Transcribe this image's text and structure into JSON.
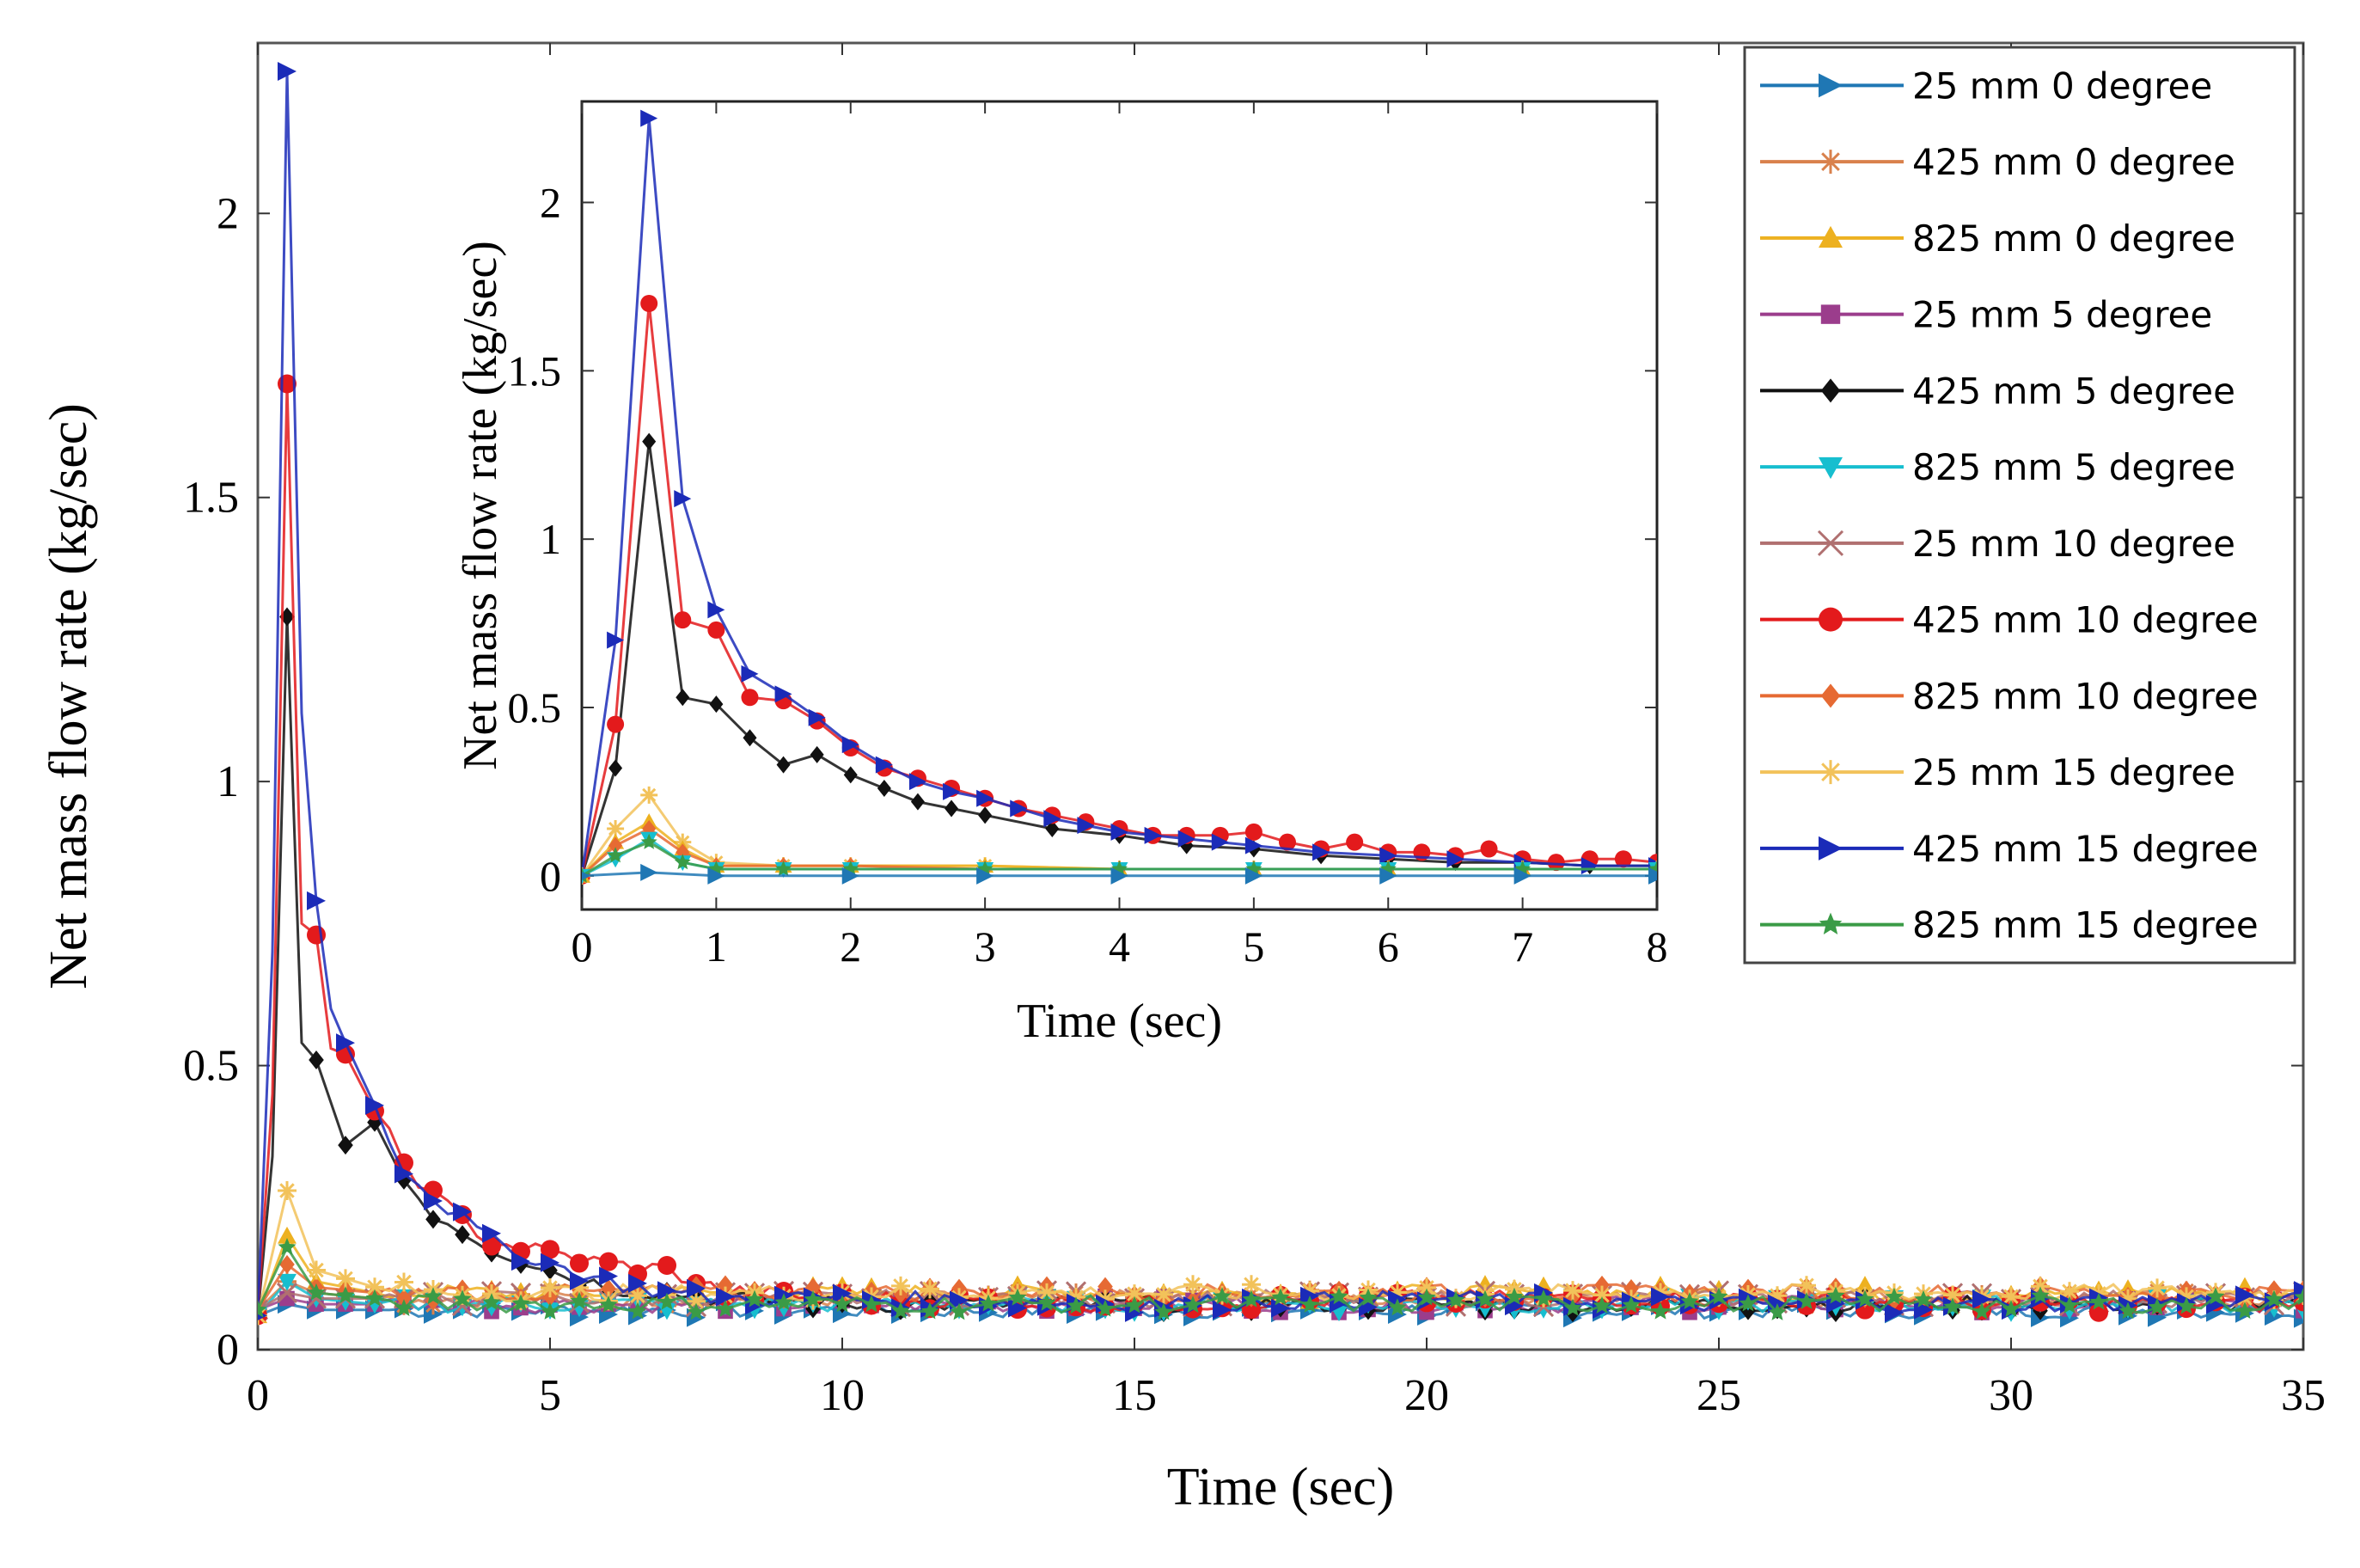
{
  "chart_data": [
    {
      "type": "line",
      "role": "main",
      "title": "",
      "xlabel": "Time (sec)",
      "ylabel": "Net mass flow rate (kg/sec)",
      "xlim": [
        0,
        35
      ],
      "ylim": [
        0,
        2.3
      ],
      "xticks": [
        "0",
        "5",
        "10",
        "15",
        "20",
        "25",
        "30",
        "35"
      ],
      "yticks": [
        "0",
        "0.5",
        "1",
        "1.5",
        "2"
      ],
      "legend_position": "top-right",
      "series": [
        {
          "name": "25 mm 0 degree",
          "color": "#1f77b4",
          "marker": "triangle-right",
          "x": [
            0,
            0.5,
            1,
            2,
            3,
            5,
            10,
            15,
            20,
            25,
            30,
            35
          ],
          "y": [
            0.06,
            0.08,
            0.07,
            0.07,
            0.07,
            0.07,
            0.07,
            0.07,
            0.07,
            0.07,
            0.07,
            0.07
          ]
        },
        {
          "name": "425 mm 0 degree",
          "color": "#d9814c",
          "marker": "asterisk",
          "x": [
            0,
            0.5,
            1,
            2,
            3,
            5,
            10,
            15,
            20,
            25,
            30,
            35
          ],
          "y": [
            0.07,
            0.12,
            0.1,
            0.09,
            0.09,
            0.09,
            0.09,
            0.09,
            0.09,
            0.09,
            0.09,
            0.09
          ]
        },
        {
          "name": "825 mm 0 degree",
          "color": "#edb120",
          "marker": "triangle-up",
          "x": [
            0,
            0.5,
            1,
            2,
            3,
            5,
            10,
            15,
            20,
            25,
            30,
            35
          ],
          "y": [
            0.06,
            0.2,
            0.12,
            0.1,
            0.1,
            0.1,
            0.1,
            0.1,
            0.1,
            0.1,
            0.1,
            0.1
          ]
        },
        {
          "name": "25 mm 5 degree",
          "color": "#9b3d8c",
          "marker": "square",
          "x": [
            0,
            0.5,
            1,
            2,
            3,
            5,
            10,
            15,
            20,
            25,
            30,
            35
          ],
          "y": [
            0.07,
            0.09,
            0.08,
            0.08,
            0.08,
            0.08,
            0.08,
            0.08,
            0.08,
            0.08,
            0.08,
            0.08
          ]
        },
        {
          "name": "425 mm 5 degree",
          "color": "#111111",
          "marker": "diamond",
          "x": [
            0,
            0.25,
            0.5,
            0.75,
            1,
            1.5,
            2,
            2.5,
            3,
            4,
            5,
            6,
            8,
            10,
            15,
            20,
            25,
            30,
            35
          ],
          "y": [
            0.06,
            0.34,
            1.29,
            0.54,
            0.51,
            0.36,
            0.4,
            0.3,
            0.24,
            0.18,
            0.14,
            0.11,
            0.09,
            0.08,
            0.08,
            0.08,
            0.08,
            0.08,
            0.08
          ]
        },
        {
          "name": "825 mm 5 degree",
          "color": "#17becf",
          "marker": "triangle-down",
          "x": [
            0,
            0.5,
            1,
            2,
            3,
            5,
            10,
            15,
            20,
            25,
            30,
            35
          ],
          "y": [
            0.06,
            0.12,
            0.09,
            0.08,
            0.08,
            0.08,
            0.08,
            0.08,
            0.08,
            0.08,
            0.08,
            0.08
          ]
        },
        {
          "name": "25 mm 10 degree",
          "color": "#b07070",
          "marker": "x",
          "x": [
            0,
            0.5,
            1,
            2,
            3,
            5,
            10,
            15,
            20,
            25,
            30,
            35
          ],
          "y": [
            0.07,
            0.1,
            0.09,
            0.09,
            0.09,
            0.09,
            0.09,
            0.09,
            0.09,
            0.09,
            0.09,
            0.09
          ]
        },
        {
          "name": "425 mm 10 degree",
          "color": "#e31a1c",
          "marker": "circle",
          "x": [
            0,
            0.25,
            0.5,
            0.75,
            1,
            1.25,
            1.5,
            2,
            2.5,
            3,
            4,
            5,
            6,
            7,
            8,
            10,
            15,
            20,
            25,
            30,
            35
          ],
          "y": [
            0.06,
            0.45,
            1.7,
            0.75,
            0.73,
            0.53,
            0.52,
            0.42,
            0.33,
            0.27,
            0.19,
            0.17,
            0.15,
            0.14,
            0.1,
            0.09,
            0.08,
            0.09,
            0.09,
            0.08,
            0.08
          ]
        },
        {
          "name": "825 mm 10 degree",
          "color": "#e66a33",
          "marker": "diamond",
          "x": [
            0,
            0.5,
            1,
            2,
            3,
            5,
            10,
            15,
            20,
            25,
            30,
            35
          ],
          "y": [
            0.07,
            0.15,
            0.11,
            0.1,
            0.1,
            0.1,
            0.1,
            0.1,
            0.1,
            0.1,
            0.1,
            0.1
          ]
        },
        {
          "name": "25 mm 15 degree",
          "color": "#f2c25a",
          "marker": "asterisk",
          "x": [
            0,
            0.5,
            1,
            2,
            3,
            5,
            10,
            15,
            20,
            25,
            30,
            35
          ],
          "y": [
            0.06,
            0.28,
            0.14,
            0.11,
            0.1,
            0.1,
            0.1,
            0.1,
            0.1,
            0.1,
            0.1,
            0.1
          ]
        },
        {
          "name": "425 mm 15 degree",
          "color": "#1b2bb8",
          "marker": "triangle-right",
          "x": [
            0,
            0.25,
            0.5,
            0.75,
            1,
            1.25,
            1.5,
            2,
            2.5,
            3,
            4,
            5,
            6,
            7,
            8,
            10,
            15,
            20,
            25,
            30,
            35
          ],
          "y": [
            0.06,
            0.7,
            2.25,
            1.12,
            0.79,
            0.6,
            0.54,
            0.43,
            0.32,
            0.27,
            0.19,
            0.15,
            0.12,
            0.1,
            0.09,
            0.09,
            0.08,
            0.09,
            0.08,
            0.08,
            0.09
          ]
        },
        {
          "name": "825 mm 15 degree",
          "color": "#3a9b46",
          "marker": "star",
          "x": [
            0,
            0.5,
            1,
            2,
            3,
            5,
            10,
            15,
            20,
            25,
            30,
            35
          ],
          "y": [
            0.07,
            0.18,
            0.1,
            0.09,
            0.08,
            0.08,
            0.08,
            0.08,
            0.08,
            0.08,
            0.08,
            0.08
          ]
        }
      ]
    },
    {
      "type": "line",
      "role": "inset",
      "title": "",
      "xlabel": "Time (sec)",
      "ylabel": "Net mass flow rate (kg/sec)",
      "xlim": [
        0,
        8
      ],
      "ylim": [
        -0.1,
        2.3
      ],
      "xticks": [
        "0",
        "1",
        "2",
        "3",
        "4",
        "5",
        "6",
        "7",
        "8"
      ],
      "yticks": [
        "0",
        "0.5",
        "1",
        "1.5",
        "2"
      ],
      "series": [
        {
          "name": "425 mm 5 degree",
          "color": "#111111",
          "marker": "diamond",
          "x": [
            0,
            0.25,
            0.5,
            0.75,
            1,
            1.25,
            1.5,
            1.75,
            2,
            2.25,
            2.5,
            2.75,
            3,
            3.5,
            4,
            4.5,
            5,
            5.5,
            6,
            6.5,
            7,
            7.5,
            8
          ],
          "y": [
            0.0,
            0.32,
            1.29,
            0.53,
            0.51,
            0.41,
            0.33,
            0.36,
            0.3,
            0.26,
            0.22,
            0.2,
            0.18,
            0.14,
            0.12,
            0.09,
            0.08,
            0.06,
            0.05,
            0.04,
            0.04,
            0.03,
            0.03
          ]
        },
        {
          "name": "425 mm 10 degree",
          "color": "#e31a1c",
          "marker": "circle",
          "x": [
            0,
            0.25,
            0.5,
            0.75,
            1,
            1.25,
            1.5,
            1.75,
            2,
            2.25,
            2.5,
            2.75,
            3,
            3.25,
            3.5,
            3.75,
            4,
            4.25,
            4.5,
            4.75,
            5,
            5.25,
            5.5,
            5.75,
            6,
            6.25,
            6.5,
            6.75,
            7,
            7.25,
            7.5,
            7.75,
            8
          ],
          "y": [
            0.0,
            0.45,
            1.7,
            0.76,
            0.73,
            0.53,
            0.52,
            0.46,
            0.38,
            0.32,
            0.29,
            0.26,
            0.23,
            0.2,
            0.18,
            0.16,
            0.14,
            0.12,
            0.12,
            0.12,
            0.13,
            0.1,
            0.08,
            0.1,
            0.07,
            0.07,
            0.06,
            0.08,
            0.05,
            0.04,
            0.05,
            0.05,
            0.04
          ]
        },
        {
          "name": "425 mm 15 degree",
          "color": "#1b2bb8",
          "marker": "triangle-right",
          "x": [
            0,
            0.25,
            0.5,
            0.75,
            1,
            1.25,
            1.5,
            1.75,
            2,
            2.25,
            2.5,
            2.75,
            3,
            3.25,
            3.5,
            3.75,
            4,
            4.25,
            4.5,
            4.75,
            5,
            5.5,
            6,
            6.5,
            7,
            7.5,
            8
          ],
          "y": [
            0.0,
            0.7,
            2.25,
            1.12,
            0.79,
            0.6,
            0.54,
            0.47,
            0.39,
            0.33,
            0.28,
            0.25,
            0.23,
            0.2,
            0.17,
            0.15,
            0.13,
            0.12,
            0.11,
            0.1,
            0.09,
            0.07,
            0.06,
            0.05,
            0.04,
            0.03,
            0.03
          ]
        },
        {
          "name": "25 mm 15 degree",
          "color": "#f2c25a",
          "marker": "asterisk",
          "x": [
            0,
            0.25,
            0.5,
            0.75,
            1,
            1.5,
            2,
            3,
            4,
            5,
            6,
            7,
            8
          ],
          "y": [
            0.0,
            0.14,
            0.24,
            0.1,
            0.04,
            0.03,
            0.03,
            0.03,
            0.02,
            0.02,
            0.02,
            0.02,
            0.02
          ]
        },
        {
          "name": "825 mm 0 degree",
          "color": "#edb120",
          "marker": "triangle-up",
          "x": [
            0,
            0.25,
            0.5,
            0.75,
            1,
            1.5,
            2,
            3,
            4,
            5,
            6,
            7,
            8
          ],
          "y": [
            0.0,
            0.1,
            0.16,
            0.08,
            0.03,
            0.03,
            0.03,
            0.03,
            0.02,
            0.02,
            0.02,
            0.02,
            0.02
          ]
        },
        {
          "name": "825 mm 10 degree",
          "color": "#e66a33",
          "marker": "diamond",
          "x": [
            0,
            0.25,
            0.5,
            0.75,
            1,
            1.5,
            2,
            3,
            4,
            5,
            6,
            7,
            8
          ],
          "y": [
            0.0,
            0.09,
            0.14,
            0.07,
            0.03,
            0.03,
            0.03,
            0.02,
            0.02,
            0.02,
            0.02,
            0.02,
            0.02
          ]
        },
        {
          "name": "825 mm 5 degree",
          "color": "#17becf",
          "marker": "triangle-down",
          "x": [
            0,
            0.25,
            0.5,
            0.75,
            1,
            1.5,
            2,
            3,
            4,
            5,
            6,
            7,
            8
          ],
          "y": [
            0.0,
            0.05,
            0.11,
            0.04,
            0.02,
            0.02,
            0.02,
            0.02,
            0.02,
            0.02,
            0.02,
            0.02,
            0.02
          ]
        },
        {
          "name": "825 mm 15 degree",
          "color": "#3a9b46",
          "marker": "star",
          "x": [
            0,
            0.25,
            0.5,
            0.75,
            1,
            1.5,
            2,
            3,
            4,
            5,
            6,
            7,
            8
          ],
          "y": [
            0.0,
            0.06,
            0.1,
            0.04,
            0.02,
            0.02,
            0.02,
            0.02,
            0.02,
            0.02,
            0.02,
            0.02,
            0.02
          ]
        },
        {
          "name": "25 mm 0 degree",
          "color": "#1f77b4",
          "marker": "triangle-right",
          "x": [
            0,
            0.5,
            1,
            2,
            3,
            4,
            5,
            6,
            7,
            8
          ],
          "y": [
            0.0,
            0.01,
            0.0,
            0.0,
            0.0,
            0.0,
            0.0,
            0.0,
            0.0,
            0.0
          ]
        }
      ]
    }
  ]
}
